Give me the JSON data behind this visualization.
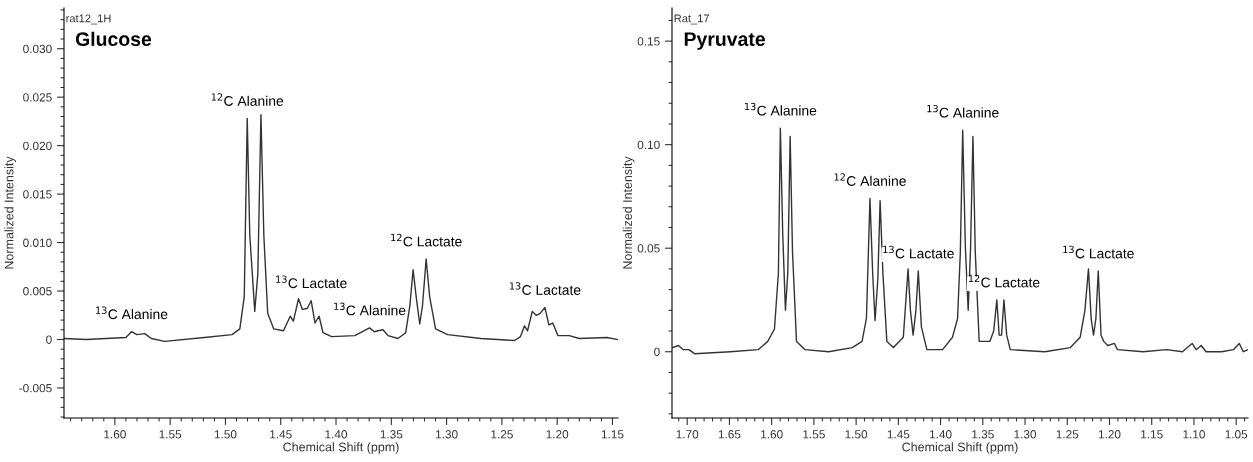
{
  "chart_data": [
    {
      "type": "line",
      "title": "Glucose",
      "xlabel": "Chemical Shift (ppm)",
      "ylabel": "Normalized Intensity",
      "grid": false,
      "legend": false,
      "marker": "none",
      "line_style": "solid",
      "annotations": [
        "rat12_1H",
        {
          "text": "$^{13}$C Alanine",
          "x": 1.585,
          "y": 0.0008
        },
        {
          "text": "$^{12}$C Alanine",
          "x": 1.4803,
          "y": 0.0228
        },
        {
          "text": "$^{13}$C Lactate",
          "x": 1.4225,
          "y": 0.004
        },
        {
          "text": "$^{13}$C Alanine",
          "x": 1.3697,
          "y": 0.0012
        },
        {
          "text": "$^{12}$C Lactate",
          "x": 1.3185,
          "y": 0.0083
        },
        {
          "text": "$^{13}$C Lactate",
          "x": 1.2111,
          "y": 0.0033
        }
      ],
      "xlim": [
        1.646,
        1.145
      ],
      "ylim": [
        -0.0081,
        0.0342
      ],
      "xticks": [
        {
          "value": 1.6,
          "label": "1.60"
        },
        1.55,
        {
          "value": 1.5,
          "label": "1.50"
        },
        1.45,
        {
          "value": 1.4,
          "label": "1.40"
        },
        1.35,
        {
          "value": 1.3,
          "label": "1.30"
        },
        1.25,
        {
          "value": 1.2,
          "label": "1.20"
        },
        1.15
      ],
      "yticks": [
        -0.005,
        0,
        0.005,
        {
          "value": 0.01,
          "label": "0.010"
        },
        0.015,
        {
          "value": 0.02,
          "label": "0.020"
        },
        0.025,
        {
          "value": 0.03,
          "label": "0.030"
        }
      ],
      "series": [
        {
          "color": "#333333",
          "x": [
            1.646,
            1.626,
            1.59,
            1.585,
            1.58,
            1.573,
            1.567,
            1.555,
            1.519,
            1.494,
            1.487,
            1.483,
            1.4803,
            1.478,
            1.4735,
            1.4707,
            1.4679,
            1.4653,
            1.4618,
            1.4564,
            1.4475,
            1.4414,
            1.4386,
            1.4339,
            1.4304,
            1.426,
            1.4225,
            1.419,
            1.4153,
            1.4118,
            1.404,
            1.383,
            1.3697,
            1.3654,
            1.362,
            1.3575,
            1.353,
            1.344,
            1.337,
            1.3332,
            1.3303,
            1.3275,
            1.3243,
            1.3218,
            1.3185,
            1.3153,
            1.31,
            1.299,
            1.269,
            1.2385,
            1.2332,
            1.2296,
            1.2268,
            1.2225,
            1.219,
            1.2154,
            1.2111,
            1.2075,
            1.204,
            1.1993,
            1.189,
            1.18,
            1.155,
            1.1457
          ],
          "values": [
            0.0001,
            0,
            0.0002,
            0.0008,
            0.0005,
            0.0006,
            0.0001,
            -0.0002,
            0.0002,
            0.0005,
            0.0011,
            0.0044,
            0.0228,
            0.0108,
            0.0029,
            0.0068,
            0.0232,
            0.0108,
            0.0027,
            0.0011,
            0.0009,
            0.0024,
            0.0019,
            0.0042,
            0.0031,
            0.0032,
            0.004,
            0.0017,
            0.0024,
            0.0007,
            0.0003,
            0.0004,
            0.0012,
            0.0008,
            0.0009,
            0.001,
            0.0004,
            0.0001,
            0.0007,
            0.0035,
            0.0072,
            0.0044,
            0.0016,
            0.0035,
            0.0083,
            0.0044,
            0.0011,
            0.0005,
            0.0001,
            -0.0001,
            0.0003,
            0.0014,
            0.0009,
            0.0029,
            0.0025,
            0.0027,
            0.0033,
            0.0015,
            0.0017,
            0.0004,
            0.0004,
            0.0001,
            0.0002,
            0
          ]
        }
      ]
    },
    {
      "type": "line",
      "title": "Pyruvate",
      "xlabel": "Chemical Shift (ppm)",
      "ylabel": "Normalized Intensity",
      "grid": false,
      "legend": false,
      "marker": "none",
      "line_style": "solid",
      "annotations": [
        "Rat_17",
        {
          "text": "$^{13}$C Alanine",
          "x": 1.5897,
          "y": 0.108
        },
        {
          "text": "$^{12}$C Alanine",
          "x": 1.4836,
          "y": 0.074
        },
        {
          "text": "$^{13}$C Lactate",
          "x": 1.4264,
          "y": 0.039
        },
        {
          "text": "$^{13}$C Alanine",
          "x": 1.3738,
          "y": 0.107
        },
        {
          "text": "$^{12}$C Lactate",
          "x": 1.325,
          "y": 0.025
        },
        {
          "text": "$^{13}$C Lactate",
          "x": 1.2133,
          "y": 0.039
        }
      ],
      "xlim": [
        1.718,
        1.036
      ],
      "ylim": [
        -0.032,
        0.166
      ],
      "xticks": [
        {
          "value": 1.7,
          "label": "1.70"
        },
        1.65,
        {
          "value": 1.6,
          "label": "1.60"
        },
        1.55,
        {
          "value": 1.5,
          "label": "1.50"
        },
        1.45,
        {
          "value": 1.4,
          "label": "1.40"
        },
        1.35,
        {
          "value": 1.3,
          "label": "1.30"
        },
        1.25,
        {
          "value": 1.2,
          "label": "1.20"
        },
        1.15,
        {
          "value": 1.1,
          "label": "1.10"
        },
        1.05
      ],
      "yticks": [
        0,
        0.05,
        {
          "value": 0.1,
          "label": "0.10"
        },
        0.15
      ],
      "series": [
        {
          "color": "#333333",
          "x": [
            1.7177,
            1.7103,
            1.7047,
            1.698,
            1.691,
            1.649,
            1.616,
            1.6046,
            1.5967,
            1.592,
            1.5897,
            1.5869,
            1.5837,
            1.5809,
            1.5781,
            1.5753,
            1.5706,
            1.5605,
            1.5325,
            1.5046,
            1.493,
            1.4878,
            1.4836,
            1.4804,
            1.4776,
            1.4743,
            1.4716,
            1.4683,
            1.4636,
            1.4558,
            1.4441,
            1.4385,
            1.4357,
            1.4325,
            1.4292,
            1.4264,
            1.4227,
            1.4162,
            1.3976,
            1.3859,
            1.3799,
            1.3766,
            1.3738,
            1.3706,
            1.3673,
            1.3645,
            1.3617,
            1.3589,
            1.3543,
            1.3417,
            1.3371,
            1.3334,
            1.3306,
            1.3278,
            1.325,
            1.3217,
            1.3175,
            1.2766,
            1.2463,
            1.2347,
            1.2291,
            1.2249,
            1.2217,
            1.2189,
            1.2161,
            1.2133,
            1.21,
            1.2068,
            1.2021,
            1.1942,
            1.1905,
            1.1603,
            1.1323,
            1.1137,
            1.1021,
            1.0974,
            1.0914,
            1.0857,
            1.0672,
            1.0533,
            1.0463,
            1.0416,
            1.036
          ],
          "values": [
            0.002,
            0.003,
            0.001,
            0.001,
            -0.001,
            0,
            0.001,
            0.005,
            0.011,
            0.038,
            0.108,
            0.057,
            0.02,
            0.038,
            0.104,
            0.048,
            0.005,
            0.001,
            0,
            0.002,
            0.005,
            0.016,
            0.074,
            0.038,
            0.015,
            0.035,
            0.073,
            0.038,
            0.005,
            0.002,
            0.007,
            0.04,
            0.02,
            0.008,
            0.02,
            0.039,
            0.012,
            0.001,
            0.001,
            0.007,
            0.016,
            0.048,
            0.107,
            0.05,
            0.02,
            0.05,
            0.104,
            0.048,
            0.005,
            0.005,
            0.01,
            0.025,
            0.008,
            0.008,
            0.025,
            0.008,
            0.001,
            0,
            0.002,
            0.007,
            0.02,
            0.04,
            0.016,
            0.008,
            0.016,
            0.039,
            0.008,
            0.005,
            0.003,
            0.004,
            0.001,
            0,
            0.001,
            0,
            0.004,
            0.001,
            0.003,
            0,
            0,
            0.001,
            0.004,
            0,
            0.001
          ]
        }
      ]
    }
  ]
}
